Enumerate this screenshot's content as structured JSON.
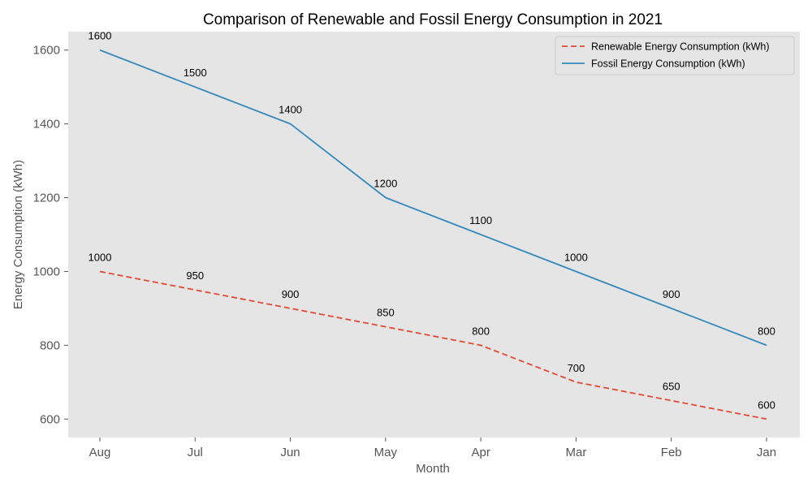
{
  "chart_data": {
    "type": "line",
    "title": "Comparison of Renewable and Fossil Energy Consumption in 2021",
    "xlabel": "Month",
    "ylabel": "Energy Consumption (kWh)",
    "categories": [
      "Aug",
      "Jul",
      "Jun",
      "May",
      "Apr",
      "Mar",
      "Feb",
      "Jan"
    ],
    "ylim": [
      550,
      1650
    ],
    "yticks": [
      600,
      800,
      1000,
      1200,
      1400,
      1600
    ],
    "grid": false,
    "legend_position": "top-right",
    "series": [
      {
        "name": "Renewable Energy Consumption (kWh)",
        "values": [
          1000,
          950,
          900,
          850,
          800,
          700,
          650,
          600
        ],
        "color": "#E24A33",
        "style": "dashed"
      },
      {
        "name": "Fossil Energy Consumption (kWh)",
        "values": [
          1600,
          1500,
          1400,
          1200,
          1100,
          1000,
          900,
          800
        ],
        "color": "#348ABD",
        "style": "solid"
      }
    ]
  }
}
